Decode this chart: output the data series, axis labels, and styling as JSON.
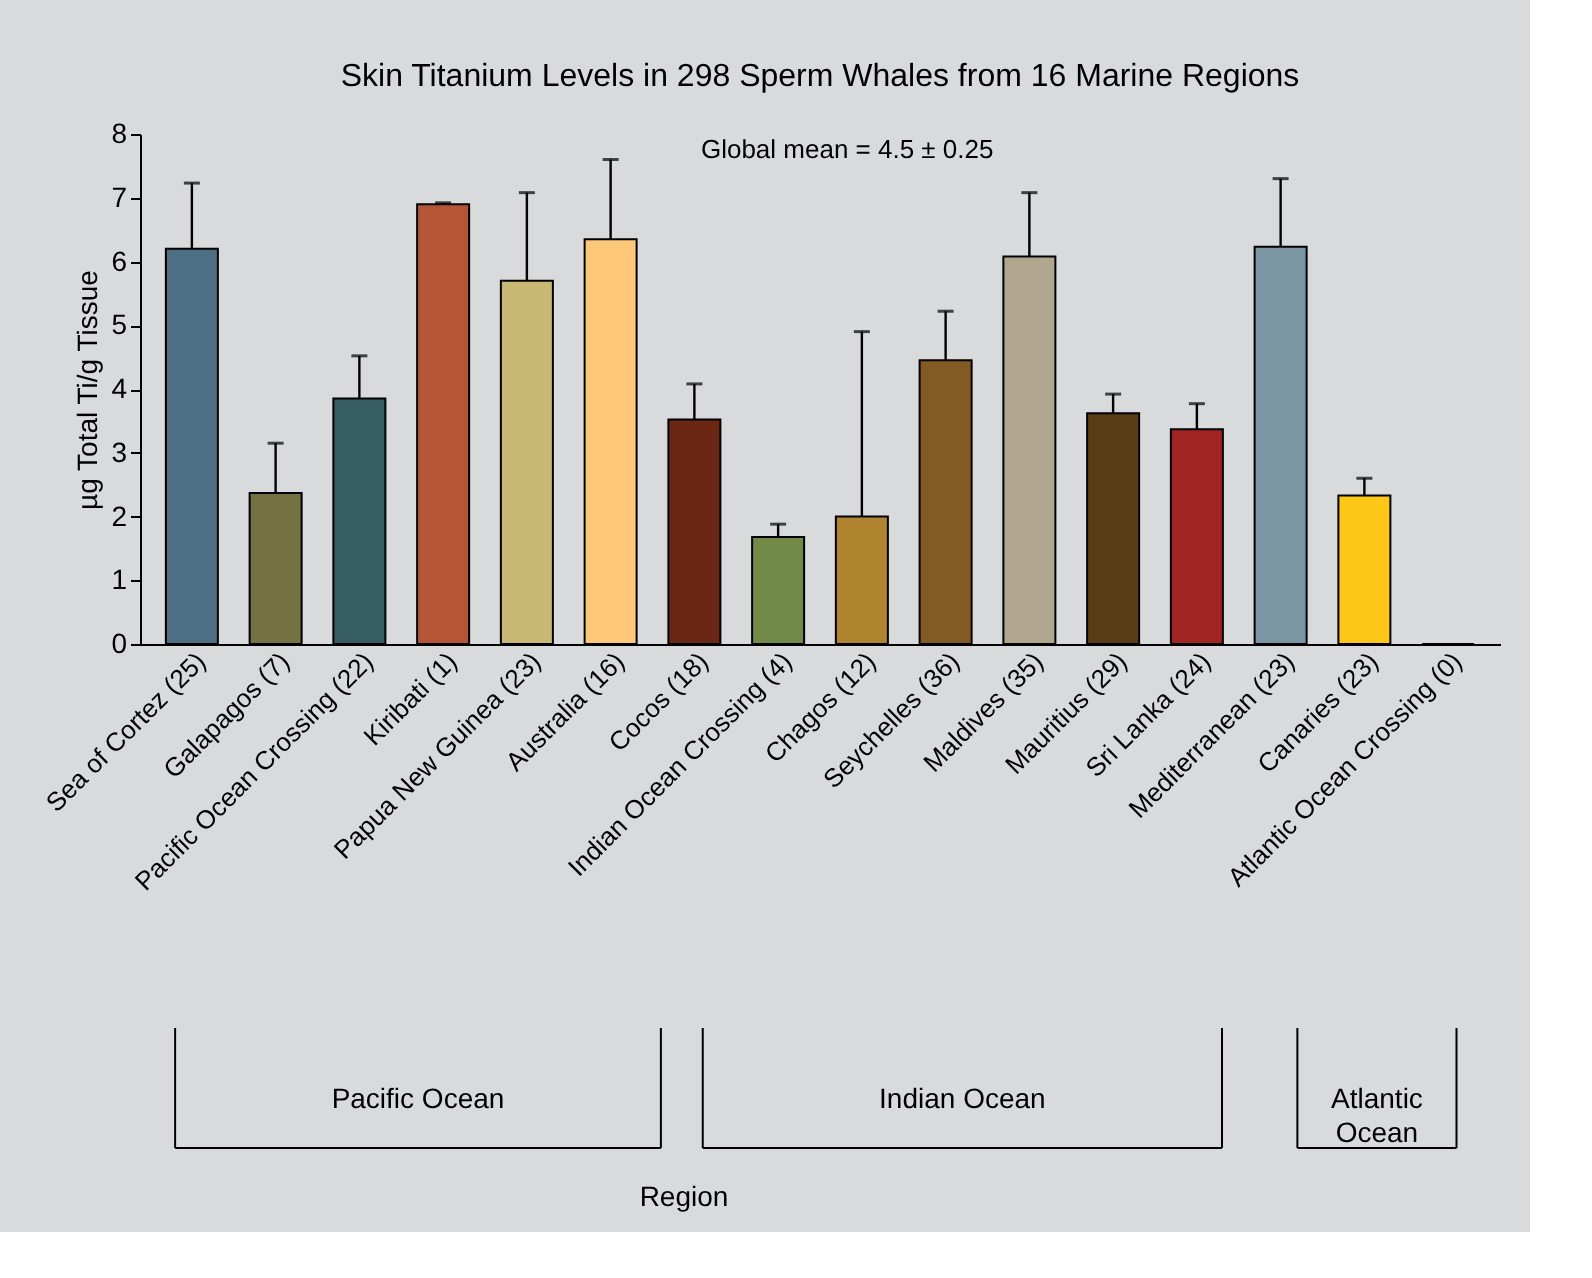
{
  "chart_data": {
    "type": "bar",
    "title": "Skin Titanium Levels in 298 Sperm Whales from 16 Marine Regions",
    "ylabel": "µg Total Ti/g Tissue",
    "categories": [
      "Sea of Cortez (25)",
      "Galapagos (7)",
      "Pacific Ocean Crossing (22)",
      "Kiribati (1)",
      "Papua New Guinea (23)",
      "Australia (16)",
      "Cocos (18)",
      "Indian Ocean Crossing (4)",
      "Chagos (12)",
      "Seychelles (36)",
      "Maldives (35)",
      "Mauritius (29)",
      "Sri Lanka (24)",
      "Mediterranean (23)",
      "Canaries (23)",
      "Atlantic Ocean Crossing (0)"
    ],
    "values": [
      6.2,
      2.37,
      3.85,
      6.9,
      5.7,
      6.35,
      3.52,
      1.68,
      2.0,
      4.45,
      6.08,
      3.62,
      3.37,
      6.23,
      2.33,
      0
    ],
    "errors": [
      [
        6.2,
        7.23
      ],
      [
        2.37,
        3.15
      ],
      [
        3.85,
        4.52
      ],
      [
        6.9,
        6.92
      ],
      [
        5.7,
        7.08
      ],
      [
        6.35,
        7.6
      ],
      [
        3.52,
        4.08
      ],
      [
        1.68,
        1.88
      ],
      [
        2.0,
        4.9
      ],
      [
        4.45,
        5.22
      ],
      [
        6.08,
        7.08
      ],
      [
        3.62,
        3.92
      ],
      [
        3.37,
        3.77
      ],
      [
        6.23,
        7.3
      ],
      [
        2.33,
        2.6
      ],
      null
    ],
    "colors": [
      "#4f6f84",
      "#747243",
      "#365c64",
      "#b55537",
      "#c9b873",
      "#fec87a",
      "#6b2614",
      "#728a47",
      "#b0832e",
      "#845a24",
      "#b1a78f",
      "#583d17",
      "#9f2422",
      "#7a95a3",
      "#fec617",
      "#000000"
    ],
    "ylim": [
      0,
      8
    ],
    "yticks": [
      0,
      1,
      2,
      3,
      4,
      5,
      6,
      7,
      8
    ],
    "annotations": [
      "Global mean = 4.5 ± 0.25",
      "Pacific Ocean",
      "Indian Ocean",
      "Atlantic Ocean",
      "Region"
    ]
  }
}
